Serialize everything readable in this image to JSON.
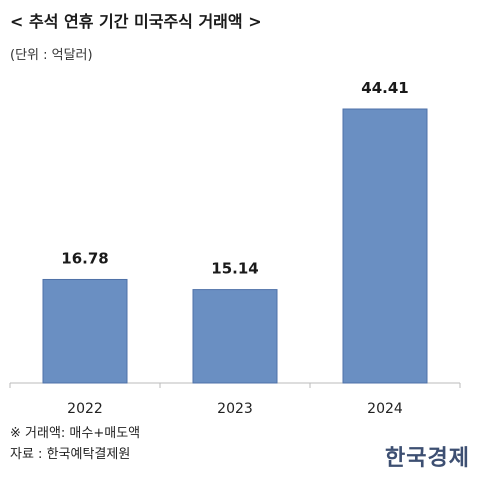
{
  "title": "< 추석 연휴 기간 미국주식 거래액 >",
  "unit_label": "(단위 : 억달러)",
  "footnote": "※ 거래액: 매수+매도액",
  "source": "자료 : 한국예탁결제원",
  "logo_text": "한국경제",
  "colors": {
    "bar": "#6a8fc2",
    "bar_stroke": "#4f72a8",
    "axis": "#bbbbbb"
  },
  "chart_data": {
    "type": "bar",
    "categories": [
      "2022",
      "2023",
      "2024"
    ],
    "values": [
      16.78,
      15.14,
      44.41
    ],
    "value_labels": [
      "16.78",
      "15.14",
      "44.41"
    ],
    "title": "< 추석 연휴 기간 미국주식 거래액 >",
    "xlabel": "",
    "ylabel": "",
    "ylim": [
      0,
      50
    ],
    "grid": false,
    "legend": "none"
  }
}
